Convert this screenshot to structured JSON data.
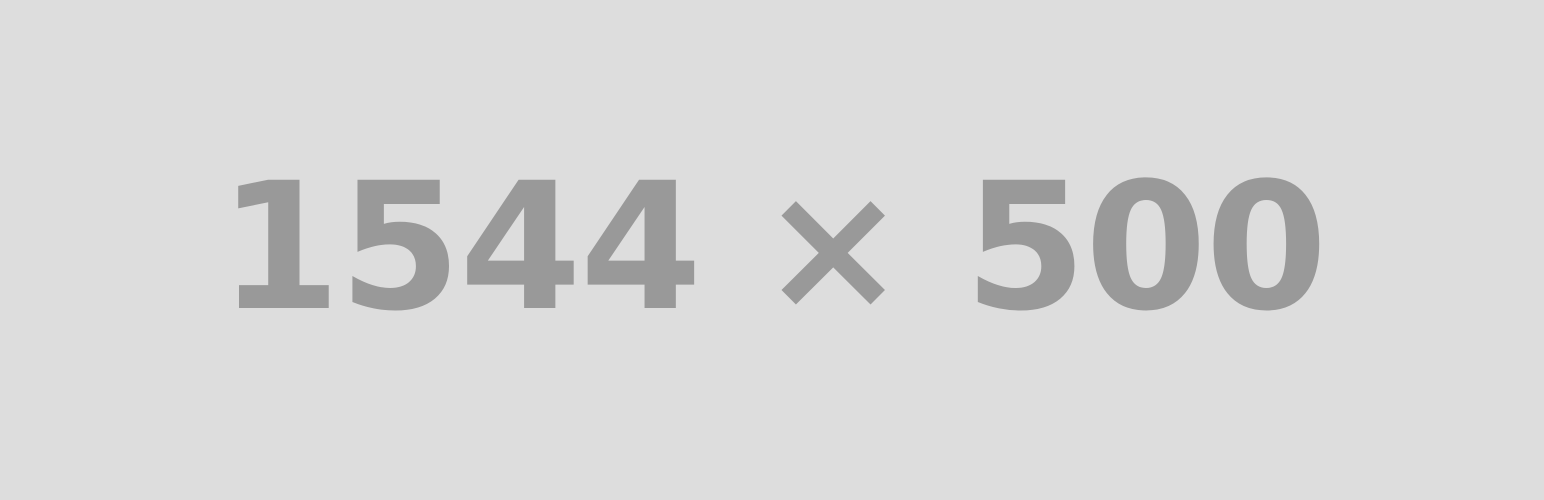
{
  "placeholder": {
    "label": "1544 × 500",
    "colors": {
      "background": "#dddddd",
      "text": "#999999"
    }
  }
}
